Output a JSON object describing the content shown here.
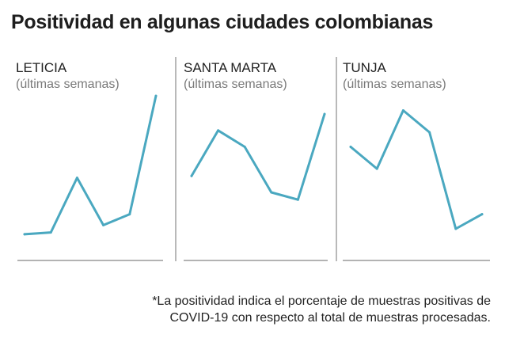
{
  "title": "Positividad en algunas ciudades colombianas",
  "footnote": {
    "line1": "*La positividad indica el porcentaje de muestras positivas de",
    "line2": "COVID-19 con respecto al total de muestras procesadas."
  },
  "colors": {
    "line": "#4aa8c0",
    "baseline": "#9a9a9a",
    "divider": "#b9b9b9"
  },
  "chart_data": [
    {
      "type": "line",
      "title": "LETICIA",
      "subtitle": "(últimas semanas)",
      "x": [
        1,
        2,
        3,
        4,
        5,
        6
      ],
      "values": [
        7,
        8,
        38,
        12,
        18,
        83
      ],
      "ylim": [
        0,
        100
      ],
      "grid": false
    },
    {
      "type": "line",
      "title": "SANTA MARTA",
      "subtitle": "(últimas semanas)",
      "x": [
        1,
        2,
        3,
        4,
        5,
        6
      ],
      "values": [
        39,
        64,
        55,
        30,
        26,
        73
      ],
      "ylim": [
        0,
        100
      ],
      "grid": false
    },
    {
      "type": "line",
      "title": "TUNJA",
      "subtitle": "(últimas semanas)",
      "x": [
        1,
        2,
        3,
        4,
        5,
        6
      ],
      "values": [
        55,
        43,
        75,
        63,
        10,
        18
      ],
      "ylim": [
        0,
        100
      ],
      "grid": false
    }
  ]
}
